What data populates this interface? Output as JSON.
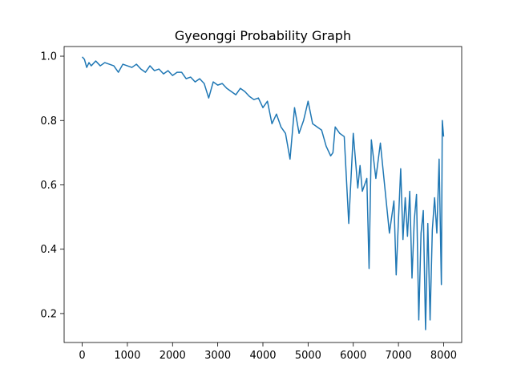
{
  "chart_data": {
    "type": "line",
    "title": "Gyeonggi Probability Graph",
    "xlabel": "",
    "ylabel": "",
    "xlim": [
      -400,
      8400
    ],
    "ylim": [
      0.11,
      1.03
    ],
    "x_ticks": [
      0,
      1000,
      2000,
      3000,
      4000,
      5000,
      6000,
      7000,
      8000
    ],
    "y_ticks": [
      0.2,
      0.4,
      0.6,
      0.8,
      1.0
    ],
    "y_tick_labels": [
      "0.2",
      "0.4",
      "0.6",
      "0.8",
      "1.0"
    ],
    "x_tick_labels": [
      "0",
      "1000",
      "2000",
      "3000",
      "4000",
      "5000",
      "6000",
      "7000",
      "8000"
    ],
    "grid": false,
    "line_color": "#1f77b4",
    "series": [
      {
        "x": [
          0,
          50,
          100,
          150,
          200,
          300,
          400,
          500,
          600,
          700,
          800,
          900,
          1000,
          1100,
          1200,
          1300,
          1400,
          1500,
          1600,
          1700,
          1800,
          1900,
          2000,
          2100,
          2200,
          2300,
          2400,
          2500,
          2600,
          2700,
          2800,
          2900,
          3000,
          3100,
          3200,
          3300,
          3400,
          3500,
          3600,
          3700,
          3800,
          3900,
          4000,
          4100,
          4200,
          4300,
          4400,
          4500,
          4600,
          4700,
          4800,
          4900,
          5000,
          5100,
          5200,
          5300,
          5400,
          5500,
          5550,
          5600,
          5700,
          5800,
          5900,
          6000,
          6100,
          6150,
          6200,
          6300,
          6350,
          6400,
          6500,
          6600,
          6700,
          6800,
          6900,
          6950,
          7000,
          7050,
          7100,
          7150,
          7200,
          7250,
          7300,
          7350,
          7400,
          7450,
          7500,
          7550,
          7600,
          7650,
          7700,
          7750,
          7800,
          7850,
          7900,
          7950,
          7970,
          8000
        ],
        "y": [
          0.998,
          0.99,
          0.965,
          0.98,
          0.97,
          0.985,
          0.97,
          0.98,
          0.975,
          0.97,
          0.95,
          0.975,
          0.97,
          0.965,
          0.975,
          0.96,
          0.95,
          0.97,
          0.955,
          0.96,
          0.945,
          0.955,
          0.94,
          0.95,
          0.95,
          0.93,
          0.935,
          0.92,
          0.93,
          0.915,
          0.87,
          0.92,
          0.91,
          0.915,
          0.9,
          0.89,
          0.88,
          0.9,
          0.89,
          0.875,
          0.865,
          0.87,
          0.84,
          0.86,
          0.79,
          0.82,
          0.78,
          0.76,
          0.68,
          0.84,
          0.76,
          0.8,
          0.86,
          0.79,
          0.78,
          0.77,
          0.72,
          0.69,
          0.7,
          0.78,
          0.76,
          0.75,
          0.48,
          0.76,
          0.59,
          0.66,
          0.58,
          0.62,
          0.34,
          0.74,
          0.62,
          0.73,
          0.59,
          0.45,
          0.55,
          0.32,
          0.49,
          0.65,
          0.43,
          0.56,
          0.44,
          0.58,
          0.31,
          0.49,
          0.57,
          0.18,
          0.45,
          0.52,
          0.15,
          0.48,
          0.18,
          0.46,
          0.56,
          0.45,
          0.68,
          0.29,
          0.8,
          0.75
        ]
      }
    ]
  }
}
